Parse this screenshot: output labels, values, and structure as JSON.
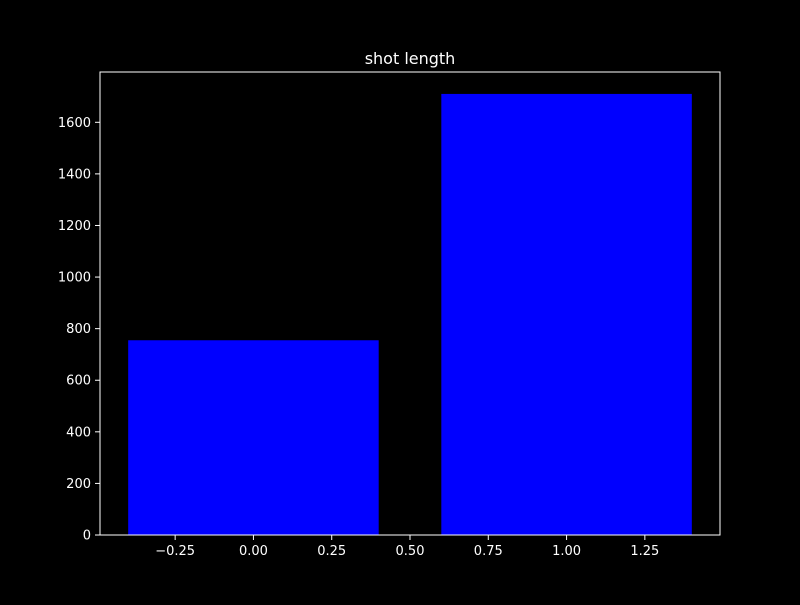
{
  "chart_data": {
    "type": "bar",
    "title": "shot length",
    "xlabel": "",
    "ylabel": "",
    "bars": [
      {
        "x": 0,
        "width": 0.8,
        "value": 755
      },
      {
        "x": 1,
        "width": 0.8,
        "value": 1710
      }
    ],
    "xlim": [
      -0.49,
      1.49
    ],
    "ylim": [
      0,
      1795
    ],
    "x_ticks": [
      -0.25,
      0.0,
      0.25,
      0.5,
      0.75,
      1.0,
      1.25
    ],
    "x_tick_labels": [
      "−0.25",
      "0.00",
      "0.25",
      "0.50",
      "0.75",
      "1.00",
      "1.25"
    ],
    "y_ticks": [
      0,
      200,
      400,
      600,
      800,
      1000,
      1200,
      1400,
      1600
    ],
    "y_tick_labels": [
      "0",
      "200",
      "400",
      "600",
      "800",
      "1000",
      "1200",
      "1400",
      "1600"
    ],
    "grid": false,
    "legend": "none",
    "colors": {
      "background": "#000000",
      "bar": "#0000ff",
      "axes": "#ffffff",
      "text": "#ffffff"
    }
  }
}
